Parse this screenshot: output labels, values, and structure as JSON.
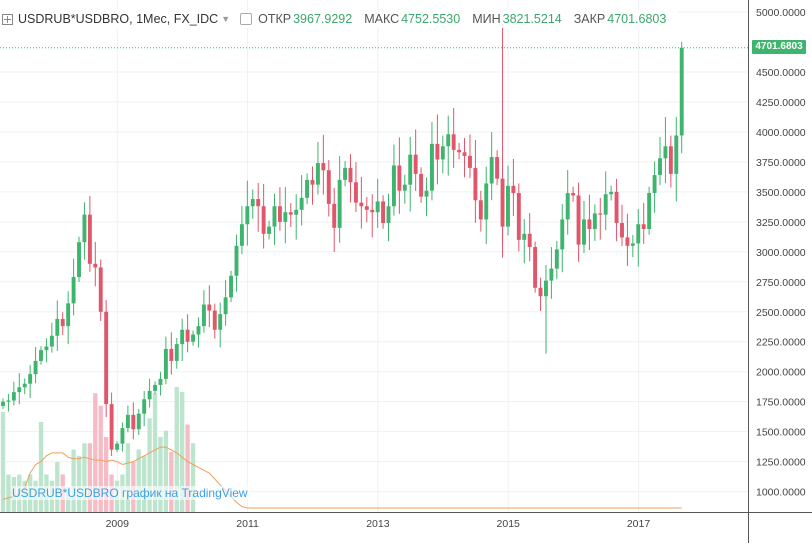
{
  "header": {
    "symbol": "USDRUB*USDBRO, 1Мес, FX_IDC",
    "open_label": "ОТКР",
    "open_value": "3967.9292",
    "high_label": "МАКС",
    "high_value": "4752.5530",
    "low_label": "МИН",
    "low_value": "3821.5214",
    "close_label": "ЗАКР",
    "close_value": "4701.6803"
  },
  "watermark": "USDRUB*USDBRO график на TradingView",
  "last_price_label": "4701.6803",
  "colors": {
    "up": "#3fb46e",
    "down": "#e0566a",
    "volume_up": "#bde5cd",
    "volume_down": "#f5bcc6",
    "ma_line": "#f0a05a"
  },
  "chart_data": {
    "type": "candlestick",
    "interval": "1 month",
    "ylim": [
      830,
      5100
    ],
    "y_ticks": [
      "1000.0000",
      "1250.0000",
      "1500.0000",
      "1750.0000",
      "2000.0000",
      "2250.0000",
      "2500.0000",
      "2750.0000",
      "3000.0000",
      "3250.0000",
      "3500.0000",
      "3750.0000",
      "4000.0000",
      "4250.0000",
      "4500.0000",
      "5000.0000"
    ],
    "x_tick_labels": [
      {
        "label": "2009",
        "t": 2009.0
      },
      {
        "label": "2011",
        "t": 2011.0
      },
      {
        "label": "2013",
        "t": 2013.0
      },
      {
        "label": "2015",
        "t": 2015.0
      },
      {
        "label": "2017",
        "t": 2017.0
      }
    ],
    "x_range": [
      2007.2,
      2018.68
    ],
    "last_close": 4701.6803,
    "closes": [
      1750,
      1760,
      1830,
      1870,
      1900,
      1980,
      2090,
      2180,
      2210,
      2300,
      2440,
      2380,
      2570,
      2790,
      3080,
      3310,
      2900,
      2870,
      2500,
      1730,
      1350,
      1400,
      1530,
      1640,
      1520,
      1650,
      1770,
      1840,
      1890,
      1940,
      2190,
      2090,
      2230,
      2350,
      2250,
      2310,
      2380,
      2560,
      2510,
      2350,
      2480,
      2620,
      2800,
      3050,
      3230,
      3380,
      3440,
      3380,
      3150,
      3210,
      3380,
      3250,
      3330,
      3310,
      3350,
      3450,
      3600,
      3560,
      3740,
      3680,
      3400,
      3200,
      3600,
      3700,
      3580,
      3410,
      3380,
      3350,
      3330,
      3420,
      3240,
      3380,
      3720,
      3510,
      3560,
      3810,
      3650,
      3460,
      3510,
      3900,
      3770,
      3880,
      3980,
      3850,
      3830,
      3800,
      3700,
      3430,
      3270,
      3570,
      3790,
      3610,
      3210,
      3550,
      3490,
      3100,
      3150,
      3040,
      2700,
      2630,
      2760,
      2860,
      3020,
      3270,
      3490,
      3470,
      3060,
      3270,
      3190,
      3320,
      3310,
      3480,
      3500,
      3240,
      3120,
      3050,
      3070,
      3230,
      3190,
      3490,
      3640,
      3780,
      3880,
      3650,
      3970,
      4701.6803
    ],
    "volume_relative": [
      0.8,
      0.3,
      0.28,
      0.3,
      0.25,
      0.3,
      0.25,
      0.72,
      0.3,
      0.25,
      0.4,
      0.3,
      0.2,
      0.5,
      0.45,
      0.55,
      0.55,
      0.95,
      0.85,
      0.6,
      0.3,
      0.25,
      0.3,
      0.55,
      0.4,
      0.5,
      0.45,
      0.75,
      0.95,
      0.6,
      0.65,
      0.48,
      1.0,
      0.96,
      0.7,
      0.55
    ],
    "volume_ma": [
      0.06,
      0.07,
      0.08,
      0.1,
      0.14,
      0.24,
      0.3,
      0.32,
      0.36,
      0.38,
      0.38,
      0.38,
      0.35,
      0.34,
      0.34,
      0.35,
      0.34,
      0.33,
      0.33,
      0.32,
      0.33,
      0.32,
      0.3,
      0.31,
      0.32,
      0.34,
      0.36,
      0.38,
      0.4,
      0.42,
      0.42,
      0.4,
      0.38,
      0.35,
      0.32,
      0.3,
      0.28,
      0.26,
      0.24,
      0.2,
      0.16,
      0.12,
      0.08,
      0.04,
      0.01,
      0.0
    ]
  }
}
